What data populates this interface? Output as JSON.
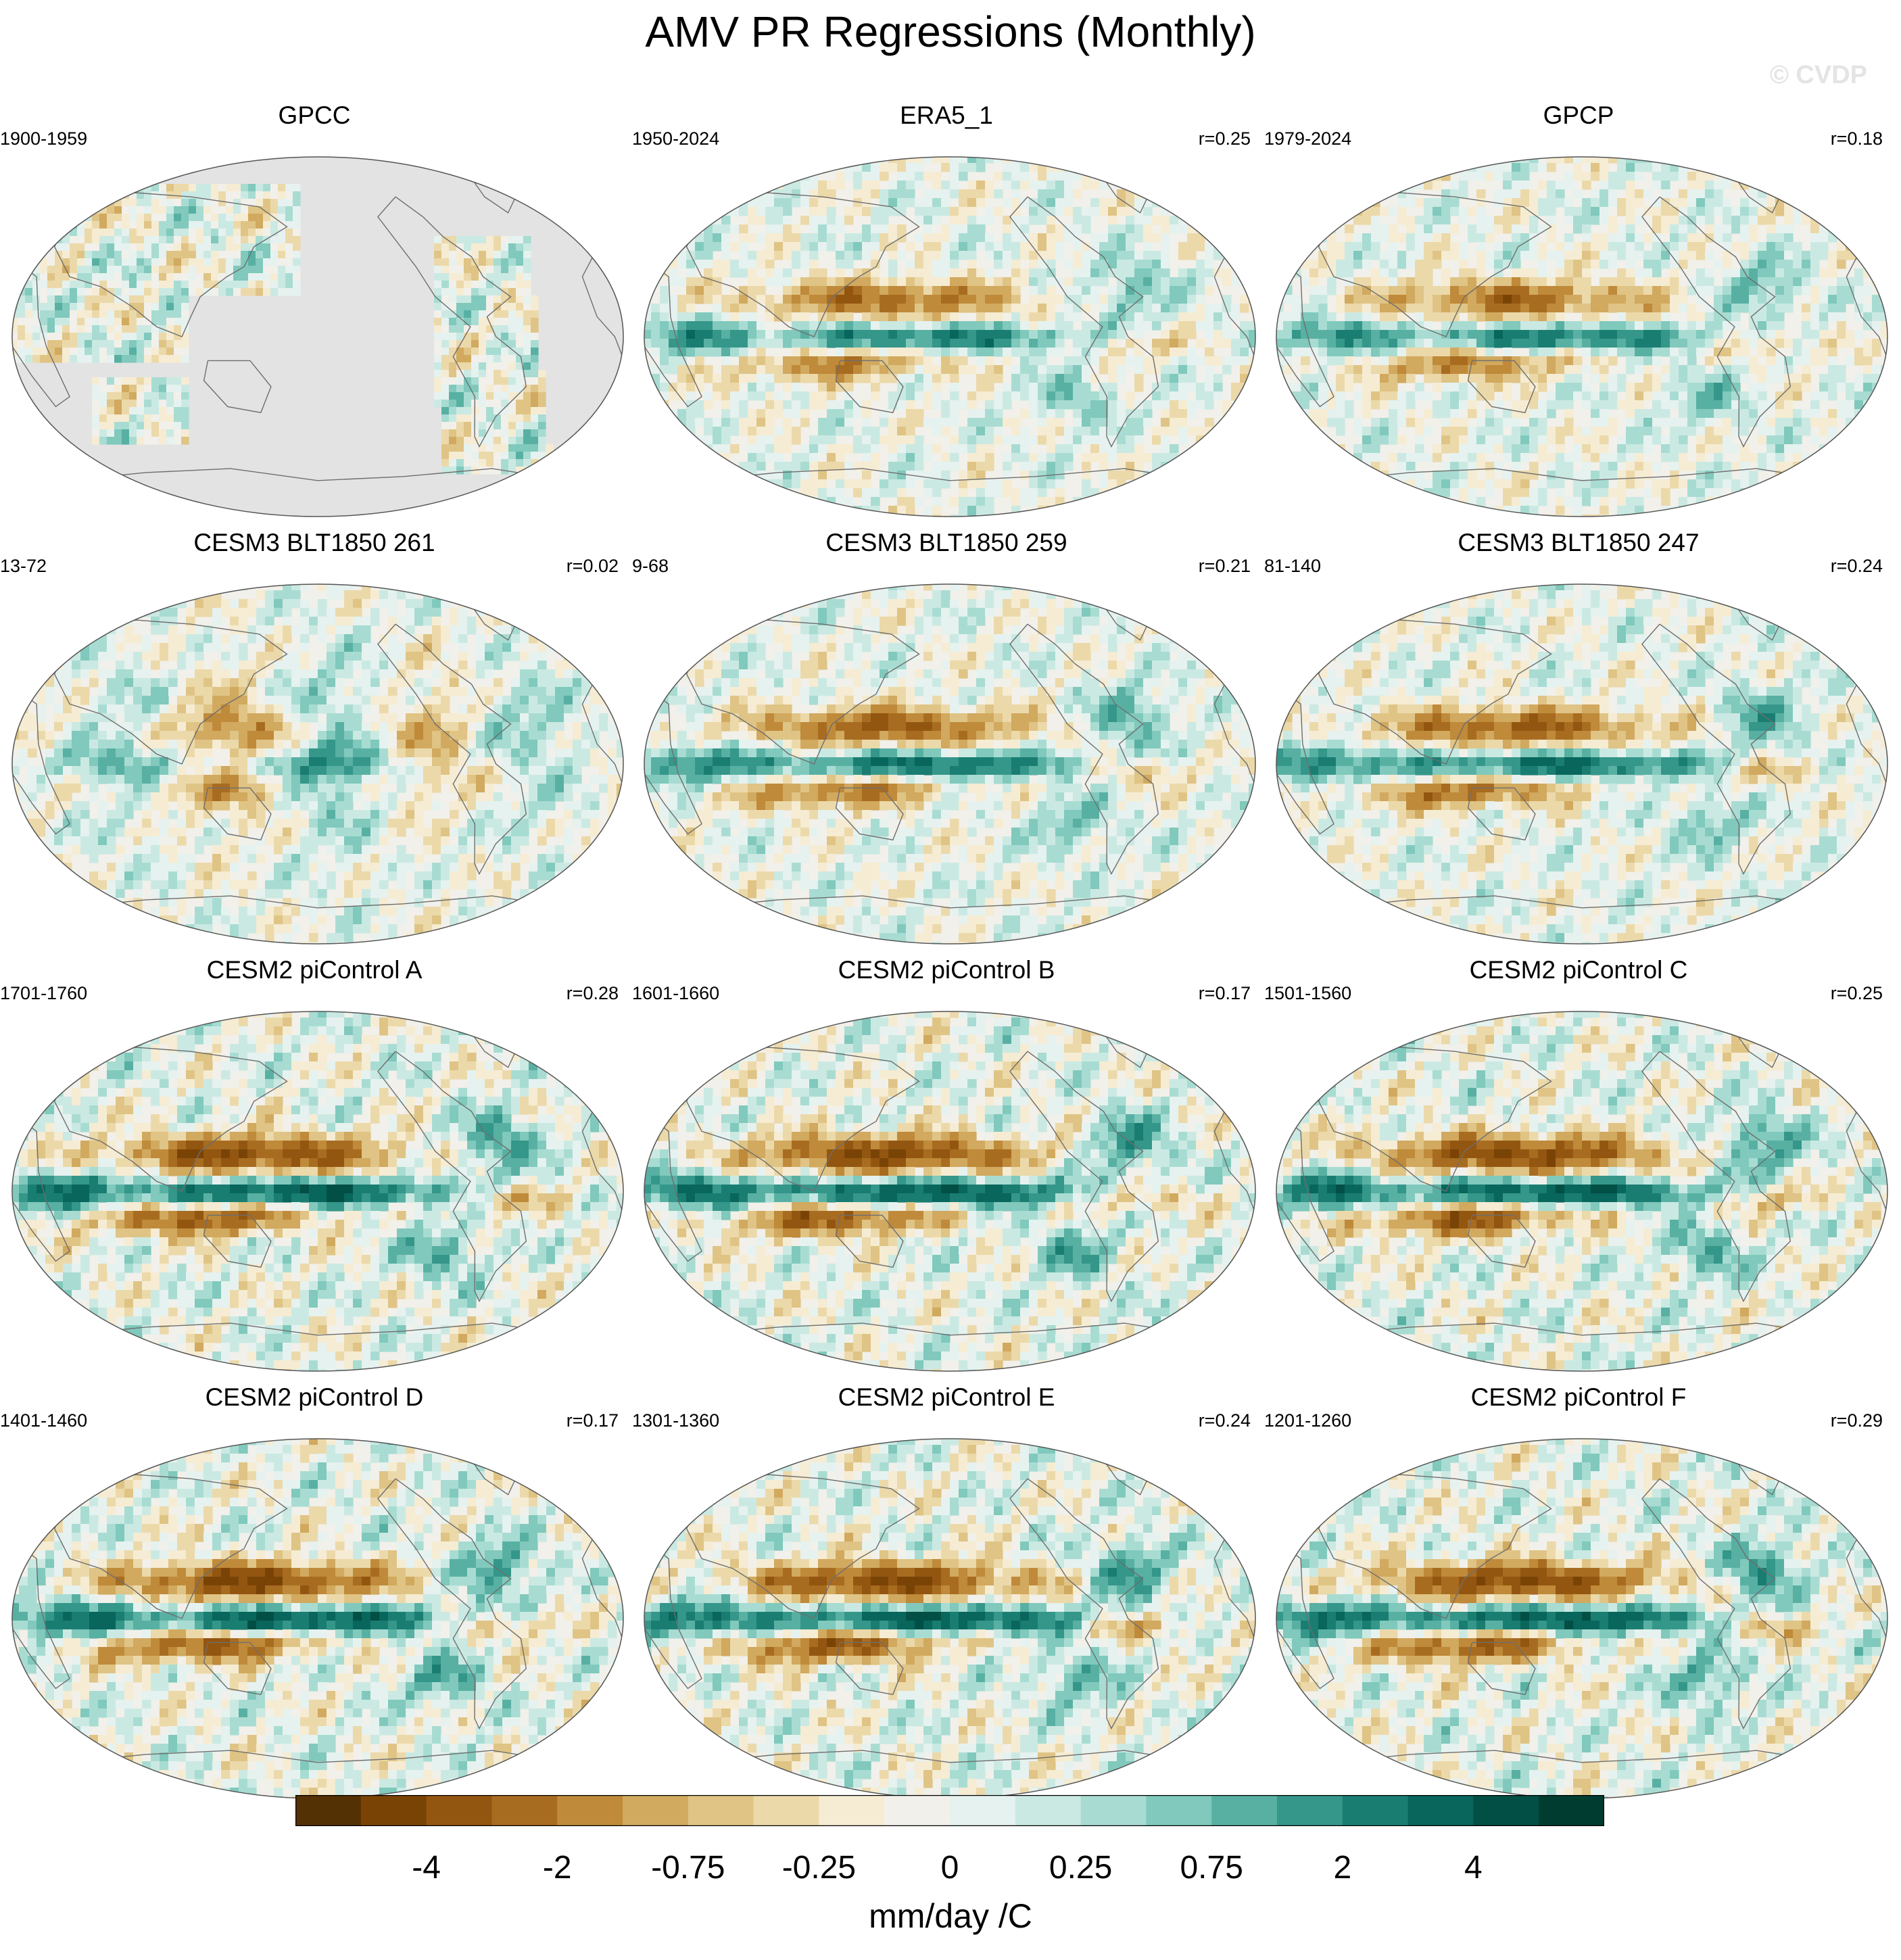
{
  "title": "AMV PR Regressions (Monthly)",
  "watermark": "© CVDP",
  "panels": [
    {
      "name": "GPCC",
      "period": "1900-1959",
      "corr": "",
      "style": "gpcc"
    },
    {
      "name": "ERA5_1",
      "period": "1950-2024",
      "corr": "r=0.25",
      "style": "obs"
    },
    {
      "name": "GPCP",
      "period": "1979-2024",
      "corr": "r=0.18",
      "style": "obs"
    },
    {
      "name": "CESM3 BLT1850 261",
      "period": "13-72",
      "corr": "r=0.02",
      "style": "weak"
    },
    {
      "name": "CESM3 BLT1850 259",
      "period": "9-68",
      "corr": "r=0.21",
      "style": "model"
    },
    {
      "name": "CESM3 BLT1850 247",
      "period": "81-140",
      "corr": "r=0.24",
      "style": "model"
    },
    {
      "name": "CESM2 piControl A",
      "period": "1701-1760",
      "corr": "r=0.28",
      "style": "strong"
    },
    {
      "name": "CESM2 piControl B",
      "period": "1601-1660",
      "corr": "r=0.17",
      "style": "strong"
    },
    {
      "name": "CESM2 piControl C",
      "period": "1501-1560",
      "corr": "r=0.25",
      "style": "strong"
    },
    {
      "name": "CESM2 piControl D",
      "period": "1401-1460",
      "corr": "r=0.17",
      "style": "strong"
    },
    {
      "name": "CESM2 piControl E",
      "period": "1301-1360",
      "corr": "r=0.24",
      "style": "strong"
    },
    {
      "name": "CESM2 piControl F",
      "period": "1201-1260",
      "corr": "r=0.29",
      "style": "strong"
    }
  ],
  "chart_data": {
    "type": "heatmap",
    "title": "AMV PR Regressions (Monthly)",
    "projection": "Robinson global maps",
    "units": "mm/day /C",
    "colorbar": {
      "ticks": [
        "-4",
        "-2",
        "-0.75",
        "-0.25",
        "0",
        "0.25",
        "0.75",
        "2",
        "4"
      ],
      "colors": [
        "#543005",
        "#7a4306",
        "#935610",
        "#a86c21",
        "#bf8a3a",
        "#d1a95f",
        "#dfc485",
        "#ecd9aa",
        "#f5ecd3",
        "#f2f0ea",
        "#e6f2ef",
        "#cbe9e3",
        "#a8dcd2",
        "#80c9bc",
        "#58b0a3",
        "#35968a",
        "#1a7d72",
        "#08665c",
        "#024f45",
        "#003c30"
      ]
    },
    "panels": [
      {
        "label": "GPCC",
        "period": "1900-1959",
        "r": null
      },
      {
        "label": "ERA5_1",
        "period": "1950-2024",
        "r": 0.25
      },
      {
        "label": "GPCP",
        "period": "1979-2024",
        "r": 0.18
      },
      {
        "label": "CESM3 BLT1850 261",
        "period": "13-72",
        "r": 0.02
      },
      {
        "label": "CESM3 BLT1850 259",
        "period": "9-68",
        "r": 0.21
      },
      {
        "label": "CESM3 BLT1850 247",
        "period": "81-140",
        "r": 0.24
      },
      {
        "label": "CESM2 piControl A",
        "period": "1701-1760",
        "r": 0.28
      },
      {
        "label": "CESM2 piControl B",
        "period": "1601-1660",
        "r": 0.17
      },
      {
        "label": "CESM2 piControl C",
        "period": "1501-1560",
        "r": 0.25
      },
      {
        "label": "CESM2 piControl D",
        "period": "1401-1460",
        "r": 0.17
      },
      {
        "label": "CESM2 piControl E",
        "period": "1301-1360",
        "r": 0.24
      },
      {
        "label": "CESM2 piControl F",
        "period": "1201-1260",
        "r": 0.29
      }
    ]
  }
}
